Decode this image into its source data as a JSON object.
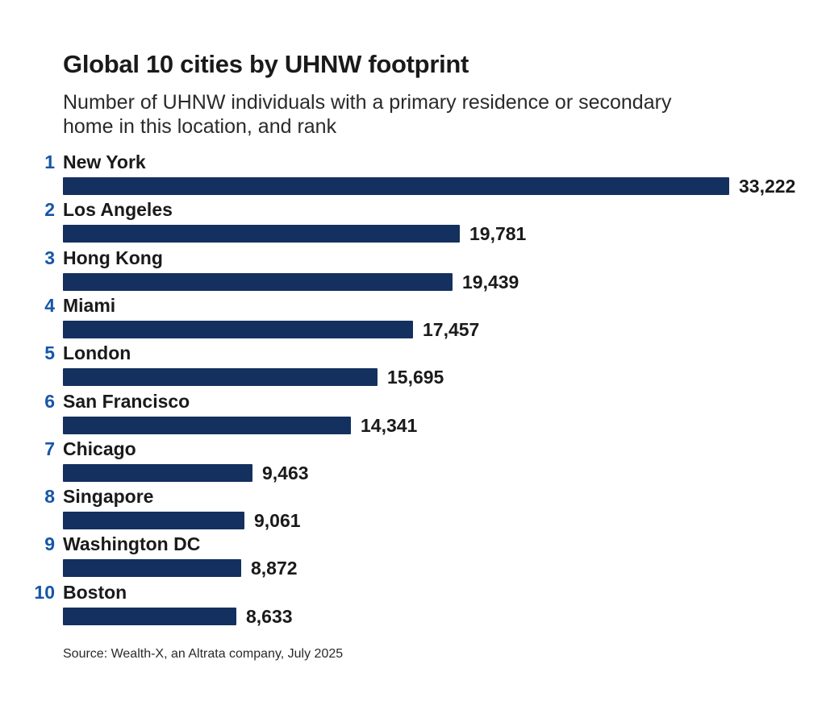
{
  "chart_data": {
    "type": "bar",
    "orientation": "horizontal",
    "title": "Global 10 cities by UHNW footprint",
    "subtitle": "Number of UHNW individuals with a primary residence or secondary home in this location, and rank",
    "categories": [
      "New York",
      "Los Angeles",
      "Hong Kong",
      "Miami",
      "London",
      "San Francisco",
      "Chicago",
      "Singapore",
      "Washington DC",
      "Boston"
    ],
    "ranks": [
      "1",
      "2",
      "3",
      "4",
      "5",
      "6",
      "7",
      "8",
      "9",
      "10"
    ],
    "values": [
      33222,
      19781,
      19439,
      17457,
      15695,
      14341,
      9463,
      9061,
      8872,
      8633
    ],
    "value_labels": [
      "33,222",
      "19,781",
      "19,439",
      "17,457",
      "15,695",
      "14,341",
      "9,463",
      "9,061",
      "8,872",
      "8,633"
    ],
    "xlim": [
      0,
      33222
    ],
    "grid": false,
    "legend": "none",
    "colors": {
      "bar": "#14305f",
      "rank": "#1656a8",
      "text": "#1a1a1a"
    }
  },
  "source": "Source: Wealth-X, an Altrata company, July 2025"
}
